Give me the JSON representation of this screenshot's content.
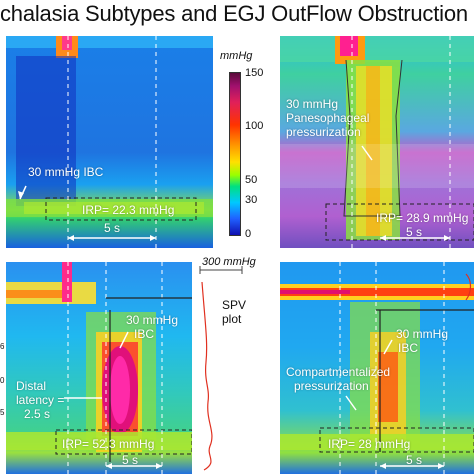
{
  "title": "chalasia Subtypes and EGJ OutFlow Obstruction",
  "colorbar": {
    "unit": "mmHg",
    "ticks": [
      "150",
      "100",
      "50",
      "30",
      "0"
    ]
  },
  "panels": {
    "p1": {
      "ibc_label": "30 mmHg IBC",
      "irp_label": "IRP= 22.3 mmHg",
      "scale_label": "5 s"
    },
    "p2": {
      "pressurization_label_1": "30 mmHg",
      "pressurization_label_2": "Panesophageal",
      "pressurization_label_3": "pressurization",
      "irp_label": "IRP= 28.9 mmHg",
      "scale_label": "5 s"
    },
    "p3": {
      "ibc_label_1": "30 mmHg",
      "ibc_label_2": "IBC",
      "latency_label_1": "Distal",
      "latency_label_2": "latency =",
      "latency_label_3": "2.5 s",
      "irp_label": "IRP= 52.3 mmHg",
      "scale_label": "5 s"
    },
    "p4": {
      "ibc_label_1": "30 mmHg",
      "ibc_label_2": "IBC",
      "pressurization_label_1": "Compartmentalized",
      "pressurization_label_2": "pressurization",
      "irp_label": "IRP= 28 mmHg",
      "scale_label": "5 s"
    }
  },
  "spv": {
    "scale_label": "300 mmHg",
    "label_1": "SPV",
    "label_2": "plot"
  },
  "left_axis_ticks": [
    "6",
    "0",
    "5"
  ]
}
